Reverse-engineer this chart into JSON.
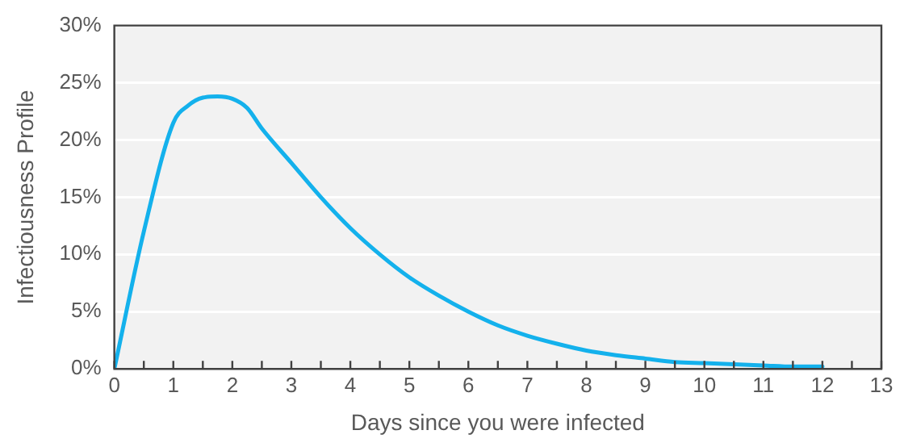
{
  "chart_data": {
    "type": "line",
    "xlabel": "Days since you were infected",
    "ylabel": "Infectiousness Profile",
    "x": [
      0,
      0.5,
      1,
      1.25,
      1.5,
      1.75,
      2,
      2.25,
      2.5,
      3,
      3.5,
      4,
      4.5,
      5,
      5.5,
      6,
      6.5,
      7,
      7.5,
      8,
      8.5,
      9,
      9.5,
      10,
      10.5,
      11,
      11.5,
      12
    ],
    "series": [
      {
        "color": "#14b1ec",
        "values": [
          0,
          12,
          21.5,
          23,
          23.7,
          23.8,
          23.6,
          22.8,
          21,
          18,
          15,
          12.3,
          10,
          8,
          6.4,
          5,
          3.8,
          2.9,
          2.2,
          1.6,
          1.2,
          0.9,
          0.6,
          0.5,
          0.4,
          0.3,
          0.2,
          0.2
        ]
      }
    ],
    "xlim": [
      0,
      13
    ],
    "xticks": [
      0,
      {
        "value": 0.5,
        "label": null
      },
      1,
      {
        "value": 1.5,
        "label": null
      },
      2,
      {
        "value": 2.5,
        "label": null
      },
      3,
      {
        "value": 3.5,
        "label": null
      },
      4,
      {
        "value": 4.5,
        "label": null
      },
      5,
      {
        "value": 5.5,
        "label": null
      },
      6,
      {
        "value": 6.5,
        "label": null
      },
      7,
      {
        "value": 7.5,
        "label": null
      },
      8,
      {
        "value": 8.5,
        "label": null
      },
      9,
      {
        "value": 9.5,
        "label": null
      },
      10,
      {
        "value": 10.5,
        "label": null
      },
      11,
      {
        "value": 11.5,
        "label": null
      },
      12,
      {
        "value": 12.5,
        "label": null
      },
      13
    ],
    "ylim": [
      0,
      30
    ],
    "yticks": [
      {
        "value": 0,
        "label": "0%"
      },
      {
        "value": 5,
        "label": "5%"
      },
      {
        "value": 10,
        "label": "10%"
      },
      {
        "value": 15,
        "label": "15%"
      },
      {
        "value": 20,
        "label": "20%"
      },
      {
        "value": 25,
        "label": "25%"
      },
      {
        "value": 30,
        "label": "30%"
      }
    ],
    "grid": "y",
    "legend": false,
    "marker": "none",
    "line_style": "solid"
  }
}
